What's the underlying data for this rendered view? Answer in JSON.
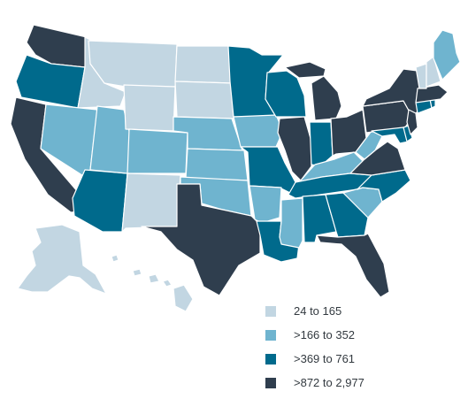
{
  "colors": {
    "tier1": "#c2d6e2",
    "tier2": "#6fb4cf",
    "tier3": "#006a8c",
    "tier4": "#2f3e4e"
  },
  "legend": {
    "items": [
      {
        "label": "24 to 165",
        "color": "#c2d6e2"
      },
      {
        "label": ">166 to 352",
        "color": "#6fb4cf"
      },
      {
        "label": ">369 to 761",
        "color": "#006a8c"
      },
      {
        "label": ">872 to 2,977",
        "color": "#2f3e4e"
      }
    ]
  },
  "states": {
    "WA": 4,
    "OR": 3,
    "CA": 4,
    "ID": 1,
    "NV": 2,
    "AZ": 3,
    "UT": 2,
    "MT": 1,
    "WY": 1,
    "CO": 2,
    "NM": 1,
    "ND": 1,
    "SD": 1,
    "NE": 2,
    "KS": 2,
    "OK": 2,
    "TX": 4,
    "MN": 3,
    "IA": 2,
    "MO": 3,
    "AR": 2,
    "LA": 3,
    "WI": 3,
    "IL": 4,
    "MI": 4,
    "IN": 3,
    "OH": 4,
    "KY": 2,
    "TN": 3,
    "MS": 2,
    "AL": 3,
    "GA": 3,
    "FL": 4,
    "SC": 2,
    "NC": 3,
    "VA": 4,
    "WV": 2,
    "PA": 4,
    "NY": 4,
    "MD": 3,
    "DE": 3,
    "NJ": 4,
    "CT": 3,
    "RI": 3,
    "MA": 4,
    "VT": 1,
    "NH": 1,
    "ME": 2,
    "AK": 1,
    "HI": 1
  }
}
